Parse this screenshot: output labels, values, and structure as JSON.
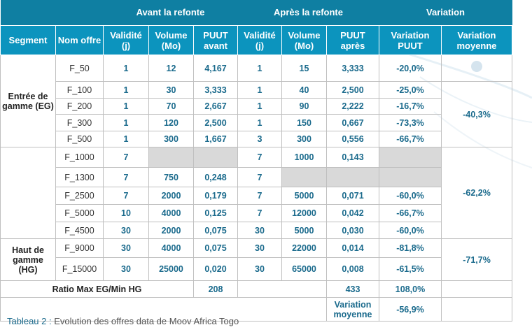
{
  "header": {
    "group_before": "Avant la refonte",
    "group_after": "Après la refonte",
    "group_variation": "Variation"
  },
  "columns": {
    "segment": "Segment",
    "name": "Nom offre",
    "validity_before": "Validité (j)",
    "volume_before": "Volume (Mo)",
    "puut_before": "PUUT avant",
    "validity_after": "Validité (j)",
    "volume_after": "Volume (Mo)",
    "puut_after": "PUUT après",
    "var_puut": "Variation PUUT",
    "var_avg": "Variation moyenne"
  },
  "segments": {
    "eg": "Entrée de gamme (EG)",
    "hg": "Haut de gamme (HG)"
  },
  "rows": [
    {
      "name": "F_50",
      "v1": "1",
      "vol1": "12",
      "p1": "4,167",
      "v2": "1",
      "vol2": "15",
      "p2": "3,333",
      "var": "-20,0%"
    },
    {
      "name": "F_100",
      "v1": "1",
      "vol1": "30",
      "p1": "3,333",
      "v2": "1",
      "vol2": "40",
      "p2": "2,500",
      "var": "-25,0%"
    },
    {
      "name": "F_200",
      "v1": "1",
      "vol1": "70",
      "p1": "2,667",
      "v2": "1",
      "vol2": "90",
      "p2": "2,222",
      "var": "-16,7%"
    },
    {
      "name": "F_300",
      "v1": "1",
      "vol1": "120",
      "p1": "2,500",
      "v2": "1",
      "vol2": "150",
      "p2": "0,667",
      "var": "-73,3%"
    },
    {
      "name": "F_500",
      "v1": "1",
      "vol1": "300",
      "p1": "1,667",
      "v2": "3",
      "vol2": "300",
      "p2": "0,556",
      "var": "-66,7%"
    },
    {
      "name": "F_1000",
      "v1": "7",
      "vol1": "",
      "p1": "",
      "v2": "7",
      "vol2": "1000",
      "p2": "0,143",
      "var": ""
    },
    {
      "name": "F_1300",
      "v1": "7",
      "vol1": "750",
      "p1": "0,248",
      "v2": "7",
      "vol2": "",
      "p2": "",
      "var": ""
    },
    {
      "name": "F_2500",
      "v1": "7",
      "vol1": "2000",
      "p1": "0,179",
      "v2": "7",
      "vol2": "5000",
      "p2": "0,071",
      "var": "-60,0%"
    },
    {
      "name": "F_5000",
      "v1": "10",
      "vol1": "4000",
      "p1": "0,125",
      "v2": "7",
      "vol2": "12000",
      "p2": "0,042",
      "var": "-66,7%"
    },
    {
      "name": "F_4500",
      "v1": "30",
      "vol1": "2000",
      "p1": "0,075",
      "v2": "30",
      "vol2": "5000",
      "p2": "0,030",
      "var": "-60,0%"
    },
    {
      "name": "F_9000",
      "v1": "30",
      "vol1": "4000",
      "p1": "0,075",
      "v2": "30",
      "vol2": "22000",
      "p2": "0,014",
      "var": "-81,8%"
    },
    {
      "name": "F_15000",
      "v1": "30",
      "vol1": "25000",
      "p1": "0,020",
      "v2": "30",
      "vol2": "65000",
      "p2": "0,008",
      "var": "-61,5%"
    }
  ],
  "group_avg": {
    "eg": "-40,3%",
    "mid": "-62,2%",
    "hg": "-71,7%"
  },
  "ratio": {
    "label": "Ratio Max EG/Min HG",
    "before": "208",
    "after": "433",
    "variation": "108,0%"
  },
  "overall": {
    "label": "Variation moyenne",
    "value": "-56,9%"
  },
  "caption": {
    "label": "Tableau 2 :",
    "text": " Evolution des offres data de Moov Africa Togo"
  }
}
